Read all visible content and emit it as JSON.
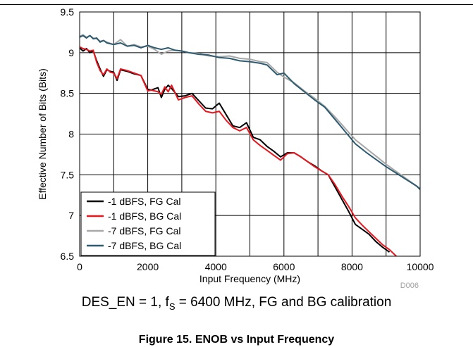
{
  "chart_data": {
    "type": "line",
    "title": "",
    "xlabel": "Input Frequency (MHz)",
    "ylabel": "Effective Number of Bits (Bits)",
    "xlim": [
      0,
      10000
    ],
    "ylim": [
      6.5,
      9.5
    ],
    "xticks": [
      0,
      2000,
      4000,
      6000,
      8000,
      10000
    ],
    "yticks": [
      6.5,
      7,
      7.5,
      8,
      8.5,
      9,
      9.5
    ],
    "xtick_labels": [
      "0",
      "2000",
      "4000",
      "6000",
      "8000",
      "10000"
    ],
    "ytick_labels": [
      "6.5",
      "7",
      "7.5",
      "8",
      "8.5",
      "9",
      "9.5"
    ],
    "grid": true,
    "legend_position": "bottom-left",
    "code_label": "D006",
    "series": [
      {
        "name": "-1 dBFS, FG Cal",
        "color": "#000000",
        "x": [
          0,
          100,
          200,
          300,
          400,
          500,
          600,
          700,
          800,
          900,
          1000,
          1100,
          1200,
          1400,
          1600,
          1800,
          2000,
          2100,
          2300,
          2400,
          2500,
          2600,
          2700,
          2900,
          3100,
          3300,
          3500,
          3700,
          3900,
          4100,
          4300,
          4500,
          4700,
          4900,
          5100,
          5300,
          5500,
          5700,
          5900,
          6100,
          6300,
          6500,
          6700,
          6900,
          7100,
          7300,
          7500,
          7700,
          7900,
          8100,
          8300,
          8500,
          8700,
          8900,
          9100
        ],
        "y": [
          9.06,
          9.02,
          9.05,
          9.0,
          9.02,
          8.9,
          8.8,
          8.71,
          8.79,
          8.77,
          8.76,
          8.66,
          8.79,
          8.77,
          8.74,
          8.72,
          8.55,
          8.54,
          8.57,
          8.45,
          8.55,
          8.6,
          8.56,
          8.46,
          8.47,
          8.5,
          8.41,
          8.32,
          8.31,
          8.38,
          8.24,
          8.1,
          8.08,
          8.14,
          7.96,
          7.93,
          7.85,
          7.79,
          7.72,
          7.77,
          7.77,
          7.72,
          7.66,
          7.61,
          7.55,
          7.5,
          7.35,
          7.2,
          7.05,
          6.89,
          6.83,
          6.77,
          6.68,
          6.61,
          6.55
        ]
      },
      {
        "name": "-1 dBFS, BG Cal",
        "color": "#e8171f",
        "x": [
          0,
          100,
          200,
          300,
          400,
          500,
          600,
          700,
          800,
          900,
          1000,
          1100,
          1200,
          1400,
          1600,
          1800,
          2000,
          2100,
          2300,
          2400,
          2500,
          2600,
          2700,
          2900,
          3100,
          3300,
          3500,
          3700,
          3900,
          4100,
          4300,
          4500,
          4700,
          4900,
          5100,
          5300,
          5500,
          5700,
          5900,
          6100,
          6300,
          6500,
          6700,
          6900,
          7100,
          7300,
          7500,
          7700,
          7900,
          8100,
          8300,
          8500,
          8700,
          8900,
          9100,
          9300
        ],
        "y": [
          9.07,
          9.05,
          9.04,
          9.02,
          9.03,
          8.88,
          8.78,
          8.73,
          8.8,
          8.76,
          8.75,
          8.68,
          8.8,
          8.78,
          8.75,
          8.72,
          8.53,
          8.54,
          8.52,
          8.49,
          8.58,
          8.52,
          8.6,
          8.42,
          8.45,
          8.47,
          8.37,
          8.28,
          8.26,
          8.28,
          8.17,
          8.08,
          8.04,
          8.08,
          7.93,
          7.86,
          7.8,
          7.74,
          7.68,
          7.76,
          7.77,
          7.72,
          7.66,
          7.6,
          7.55,
          7.5,
          7.38,
          7.24,
          7.11,
          6.97,
          6.88,
          6.8,
          6.72,
          6.64,
          6.58,
          6.5
        ]
      },
      {
        "name": "-7 dBFS, FG Cal",
        "color": "#a8a8a8",
        "x": [
          0,
          100,
          200,
          300,
          400,
          500,
          600,
          700,
          800,
          1000,
          1200,
          1400,
          1600,
          1800,
          2000,
          2200,
          2400,
          2600,
          2800,
          3000,
          3200,
          3500,
          3800,
          4100,
          4400,
          4700,
          5000,
          5300,
          5500,
          5800,
          6000,
          6300,
          6600,
          6900,
          7200,
          7500,
          7800,
          8100,
          8400,
          8700,
          9000,
          9300,
          9600,
          9900,
          10000
        ],
        "y": [
          9.2,
          9.22,
          9.19,
          9.21,
          9.18,
          9.17,
          9.14,
          9.15,
          9.13,
          9.1,
          9.16,
          9.08,
          9.1,
          9.07,
          9.08,
          9.04,
          8.98,
          9.02,
          9.03,
          9.02,
          9.0,
          8.99,
          8.96,
          8.95,
          8.96,
          8.93,
          8.92,
          8.89,
          8.88,
          8.76,
          8.7,
          8.63,
          8.53,
          8.44,
          8.34,
          8.21,
          8.07,
          7.93,
          7.83,
          7.73,
          7.63,
          7.54,
          7.45,
          7.36,
          7.33
        ]
      },
      {
        "name": "-7 dBFS, BG Cal",
        "color": "#2e5b70",
        "x": [
          0,
          100,
          200,
          300,
          400,
          500,
          600,
          700,
          800,
          1000,
          1200,
          1400,
          1600,
          1800,
          2000,
          2200,
          2400,
          2600,
          2800,
          3000,
          3200,
          3500,
          3800,
          4100,
          4400,
          4700,
          5000,
          5300,
          5500,
          5800,
          6000,
          6300,
          6600,
          6900,
          7200,
          7500,
          7800,
          8100,
          8400,
          8700,
          9000,
          9300,
          9600,
          9900,
          10000
        ],
        "y": [
          9.19,
          9.21,
          9.18,
          9.21,
          9.17,
          9.18,
          9.13,
          9.15,
          9.12,
          9.1,
          9.12,
          9.08,
          9.09,
          9.06,
          9.09,
          9.06,
          9.04,
          9.06,
          9.03,
          9.02,
          9.0,
          8.98,
          8.97,
          8.94,
          8.93,
          8.9,
          8.89,
          8.87,
          8.85,
          8.73,
          8.75,
          8.62,
          8.52,
          8.42,
          8.33,
          8.18,
          8.03,
          7.88,
          7.78,
          7.69,
          7.6,
          7.52,
          7.44,
          7.36,
          7.32
        ]
      }
    ]
  },
  "caption": {
    "prefix": "DES_EN = 1, f",
    "subscript": "S",
    "suffix": " = 6400 MHz, FG and BG calibration"
  },
  "figure_title": "Figure 15. ENOB vs Input Frequency"
}
